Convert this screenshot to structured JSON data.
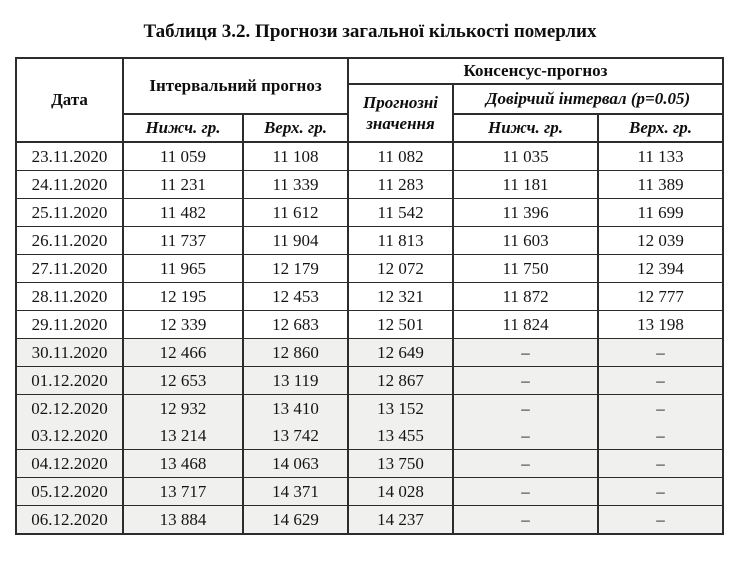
{
  "title": "Таблиця 3.2. Прогнози загальної кількості померлих",
  "table": {
    "headers": {
      "date": "Дата",
      "interval_forecast": "Інтервальний прогноз",
      "consensus_forecast": "Консенсус-прогноз",
      "forecast_values": "Прогнозні значення",
      "confidence_interval": "Довірчий інтервал (p=0.05)",
      "interval_lower": "Нижч. гр.",
      "interval_upper": "Верх. гр.",
      "ci_lower": "Нижч. гр.",
      "ci_upper": "Верх. гр."
    },
    "empty_value": "–",
    "colors": {
      "shaded_row": "#f0f0ef",
      "border": "#2c2c2c",
      "text": "#141414"
    },
    "rows": [
      {
        "date": "23.11.2020",
        "interval_low": "11 059",
        "interval_high": "11 108",
        "forecast": "11 082",
        "ci_low": "11 035",
        "ci_high": "11 133",
        "shaded": false,
        "merged_with_next": false
      },
      {
        "date": "24.11.2020",
        "interval_low": "11 231",
        "interval_high": "11 339",
        "forecast": "11 283",
        "ci_low": "11 181",
        "ci_high": "11 389",
        "shaded": false,
        "merged_with_next": false
      },
      {
        "date": "25.11.2020",
        "interval_low": "11 482",
        "interval_high": "11 612",
        "forecast": "11 542",
        "ci_low": "11 396",
        "ci_high": "11 699",
        "shaded": false,
        "merged_with_next": false
      },
      {
        "date": "26.11.2020",
        "interval_low": "11 737",
        "interval_high": "11 904",
        "forecast": "11 813",
        "ci_low": "11 603",
        "ci_high": "12 039",
        "shaded": false,
        "merged_with_next": false
      },
      {
        "date": "27.11.2020",
        "interval_low": "11 965",
        "interval_high": "12 179",
        "forecast": "12 072",
        "ci_low": "11 750",
        "ci_high": "12 394",
        "shaded": false,
        "merged_with_next": false
      },
      {
        "date": "28.11.2020",
        "interval_low": "12 195",
        "interval_high": "12 453",
        "forecast": "12 321",
        "ci_low": "11 872",
        "ci_high": "12 777",
        "shaded": false,
        "merged_with_next": false
      },
      {
        "date": "29.11.2020",
        "interval_low": "12 339",
        "interval_high": "12 683",
        "forecast": "12 501",
        "ci_low": "11 824",
        "ci_high": "13 198",
        "shaded": false,
        "merged_with_next": false
      },
      {
        "date": "30.11.2020",
        "interval_low": "12 466",
        "interval_high": "12 860",
        "forecast": "12 649",
        "ci_low": "–",
        "ci_high": "–",
        "shaded": true,
        "merged_with_next": false
      },
      {
        "date": "01.12.2020",
        "interval_low": "12 653",
        "interval_high": "13 119",
        "forecast": "12 867",
        "ci_low": "–",
        "ci_high": "–",
        "shaded": true,
        "merged_with_next": false
      },
      {
        "date": "02.12.2020",
        "interval_low": "12 932",
        "interval_high": "13 410",
        "forecast": "13 152",
        "ci_low": "–",
        "ci_high": "–",
        "shaded": true,
        "merged_with_next": true
      },
      {
        "date": "03.12.2020",
        "interval_low": "13 214",
        "interval_high": "13 742",
        "forecast": "13 455",
        "ci_low": "–",
        "ci_high": "–",
        "shaded": true,
        "merged_with_next": false
      },
      {
        "date": "04.12.2020",
        "interval_low": "13 468",
        "interval_high": "14 063",
        "forecast": "13 750",
        "ci_low": "–",
        "ci_high": "–",
        "shaded": true,
        "merged_with_next": false
      },
      {
        "date": "05.12.2020",
        "interval_low": "13 717",
        "interval_high": "14 371",
        "forecast": "14 028",
        "ci_low": "–",
        "ci_high": "–",
        "shaded": true,
        "merged_with_next": false
      },
      {
        "date": "06.12.2020",
        "interval_low": "13 884",
        "interval_high": "14 629",
        "forecast": "14 237",
        "ci_low": "–",
        "ci_high": "–",
        "shaded": true,
        "merged_with_next": false
      }
    ]
  }
}
